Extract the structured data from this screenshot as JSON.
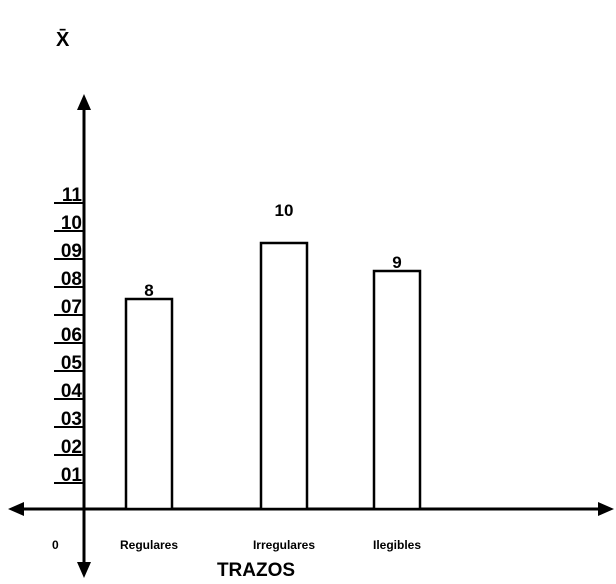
{
  "chart_data": {
    "type": "bar",
    "ylabel": "X̄",
    "xlabel": "TRAZOS",
    "origin_label": "0",
    "ylim": [
      0,
      11
    ],
    "yticks": [
      "01",
      "02",
      "03",
      "04",
      "05",
      "06",
      "07",
      "08",
      "09",
      "10",
      "11"
    ],
    "categories": [
      "Regulares",
      "Irregulares",
      "Ilegibles"
    ],
    "values": [
      8,
      10,
      9
    ],
    "data_labels": [
      "8",
      "10",
      "9"
    ],
    "grid": false,
    "legend": "none",
    "colors": {
      "bar_fill": "#ffffff",
      "stroke": "#000000"
    }
  }
}
